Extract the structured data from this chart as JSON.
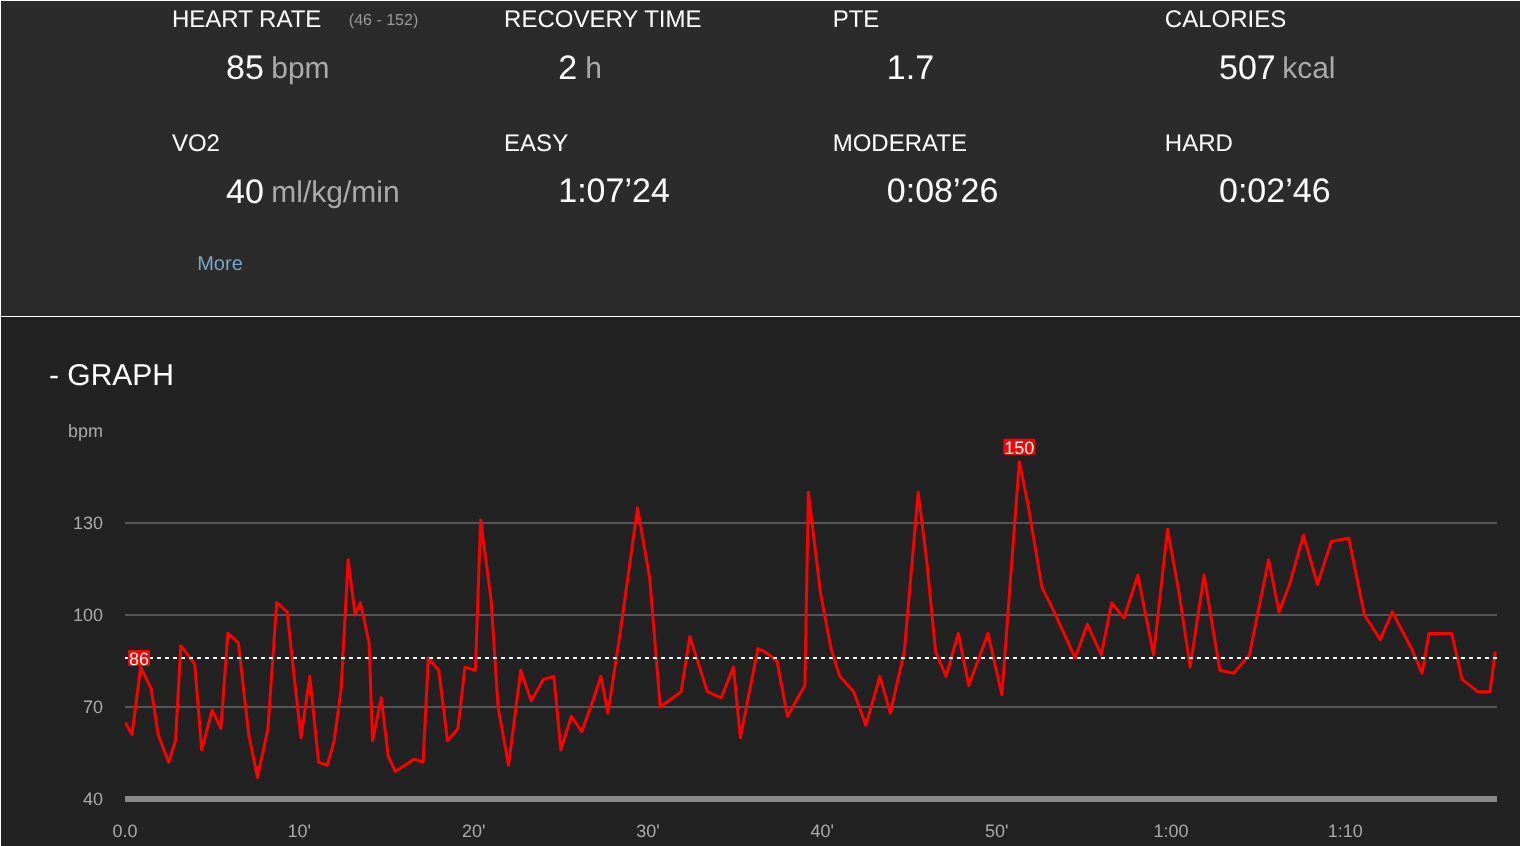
{
  "chart_data": [
    {
      "type": "other",
      "categories": [
        "HEART RATE",
        "RECOVERY TIME",
        "PTE",
        "CALORIES",
        "VO2",
        "EASY",
        "MODERATE",
        "HARD"
      ],
      "value_labels": [
        "85 bpm",
        "2 h",
        "1.7",
        "507 kcal",
        "40 ml/kg/min",
        "1:07’24",
        "0:08’26",
        "0:02’46"
      ],
      "annotations": [
        "(46 - 152)",
        "More"
      ]
    },
    {
      "type": "line",
      "title": "- GRAPH",
      "color": "#ff0000",
      "grid": "y",
      "marker": "none",
      "line_style": "solid",
      "x": [
        0,
        0.4,
        0.9,
        1.5,
        1.9,
        2.5,
        2.9,
        3.2,
        4.0,
        4.4,
        5.0,
        5.5,
        5.9,
        6.5,
        7.1,
        7.6,
        8.2,
        8.7,
        9.3,
        9.7,
        10.1,
        10.6,
        11.1,
        11.6,
        12.0,
        12.4,
        12.8,
        13.2,
        13.5,
        14.0,
        14.2,
        14.7,
        15.1,
        15.5,
        16.6,
        17.1,
        17.4,
        18.0,
        18.5,
        19.1,
        19.5,
        20.1,
        20.4,
        21.0,
        21.4,
        22.0,
        22.7,
        23.3,
        24.0,
        24.6,
        25.0,
        25.6,
        26.2,
        26.9,
        27.3,
        27.7,
        28.4,
        29.4,
        30.1,
        30.7,
        31.9,
        32.4,
        33.4,
        34.2,
        34.9,
        35.3,
        36.3,
        36.7,
        37.4,
        38.0,
        39.0,
        39.2,
        39.9,
        40.5,
        41.0,
        41.8,
        42.5,
        43.3,
        43.9,
        44.7,
        45.5,
        46.0,
        46.5,
        47.1,
        47.8,
        48.4,
        49.5,
        50.3,
        51.3,
        51.8,
        52.6,
        53.3,
        54.5,
        55.2,
        56.0,
        56.6,
        57.3,
        58.1,
        59.0,
        59.8,
        60.5,
        61.1,
        61.9,
        62.8,
        63.6,
        64.5,
        65.6,
        66.2,
        66.8,
        67.6,
        68.4,
        69.2,
        70.2,
        71.1,
        72.0,
        72.7,
        73.8,
        74.4,
        74.8,
        76.1,
        76.7,
        77.6,
        78.3,
        78.6
      ],
      "values": [
        65,
        61,
        83,
        76,
        61,
        52,
        59,
        90,
        84,
        56,
        69,
        63,
        94,
        91,
        61,
        47,
        63,
        104,
        101,
        80,
        60,
        80,
        52,
        51,
        59,
        76,
        118,
        100,
        104,
        91,
        59,
        73,
        54,
        49,
        53,
        52,
        86,
        82,
        59,
        63,
        83,
        82,
        131,
        105,
        70,
        51,
        82,
        72,
        79,
        80,
        56,
        67,
        62,
        73,
        80,
        68,
        94,
        135,
        112,
        70,
        75,
        93,
        75,
        73,
        83,
        60,
        89,
        88,
        85,
        67,
        77,
        140,
        107,
        89,
        80,
        75,
        64,
        80,
        68,
        88,
        140,
        117,
        88,
        80,
        94,
        77,
        94,
        74,
        150,
        136,
        109,
        101,
        86,
        97,
        87,
        104,
        99,
        113,
        87,
        128,
        106,
        83,
        113,
        82,
        81,
        87,
        118,
        101,
        110,
        126,
        110,
        124,
        125,
        100,
        92,
        101,
        89,
        81,
        94,
        94,
        79,
        75,
        75,
        88
      ],
      "xlim": [
        0,
        78.7
      ],
      "ylim": [
        40,
        160
      ],
      "xticks": [
        {
          "value": 0,
          "label": "0.0"
        },
        {
          "value": 10,
          "label": "10'"
        },
        {
          "value": 20,
          "label": "20'"
        },
        {
          "value": 30,
          "label": "30'"
        },
        {
          "value": 40,
          "label": "40'"
        },
        {
          "value": 50,
          "label": "50'"
        },
        {
          "value": 60,
          "label": "1:00"
        },
        {
          "value": 70,
          "label": "1:10"
        }
      ],
      "yticks": [
        40,
        70,
        100,
        130,
        {
          "value": 160,
          "label": "bpm"
        }
      ],
      "ref_lines": [
        {
          "axis": "y",
          "value": 86,
          "label": "86",
          "color": "#ffffff",
          "line_style": "dotted"
        }
      ],
      "annotations": [
        {
          "text": "150",
          "x": 51.3,
          "y": 150
        }
      ]
    }
  ]
}
